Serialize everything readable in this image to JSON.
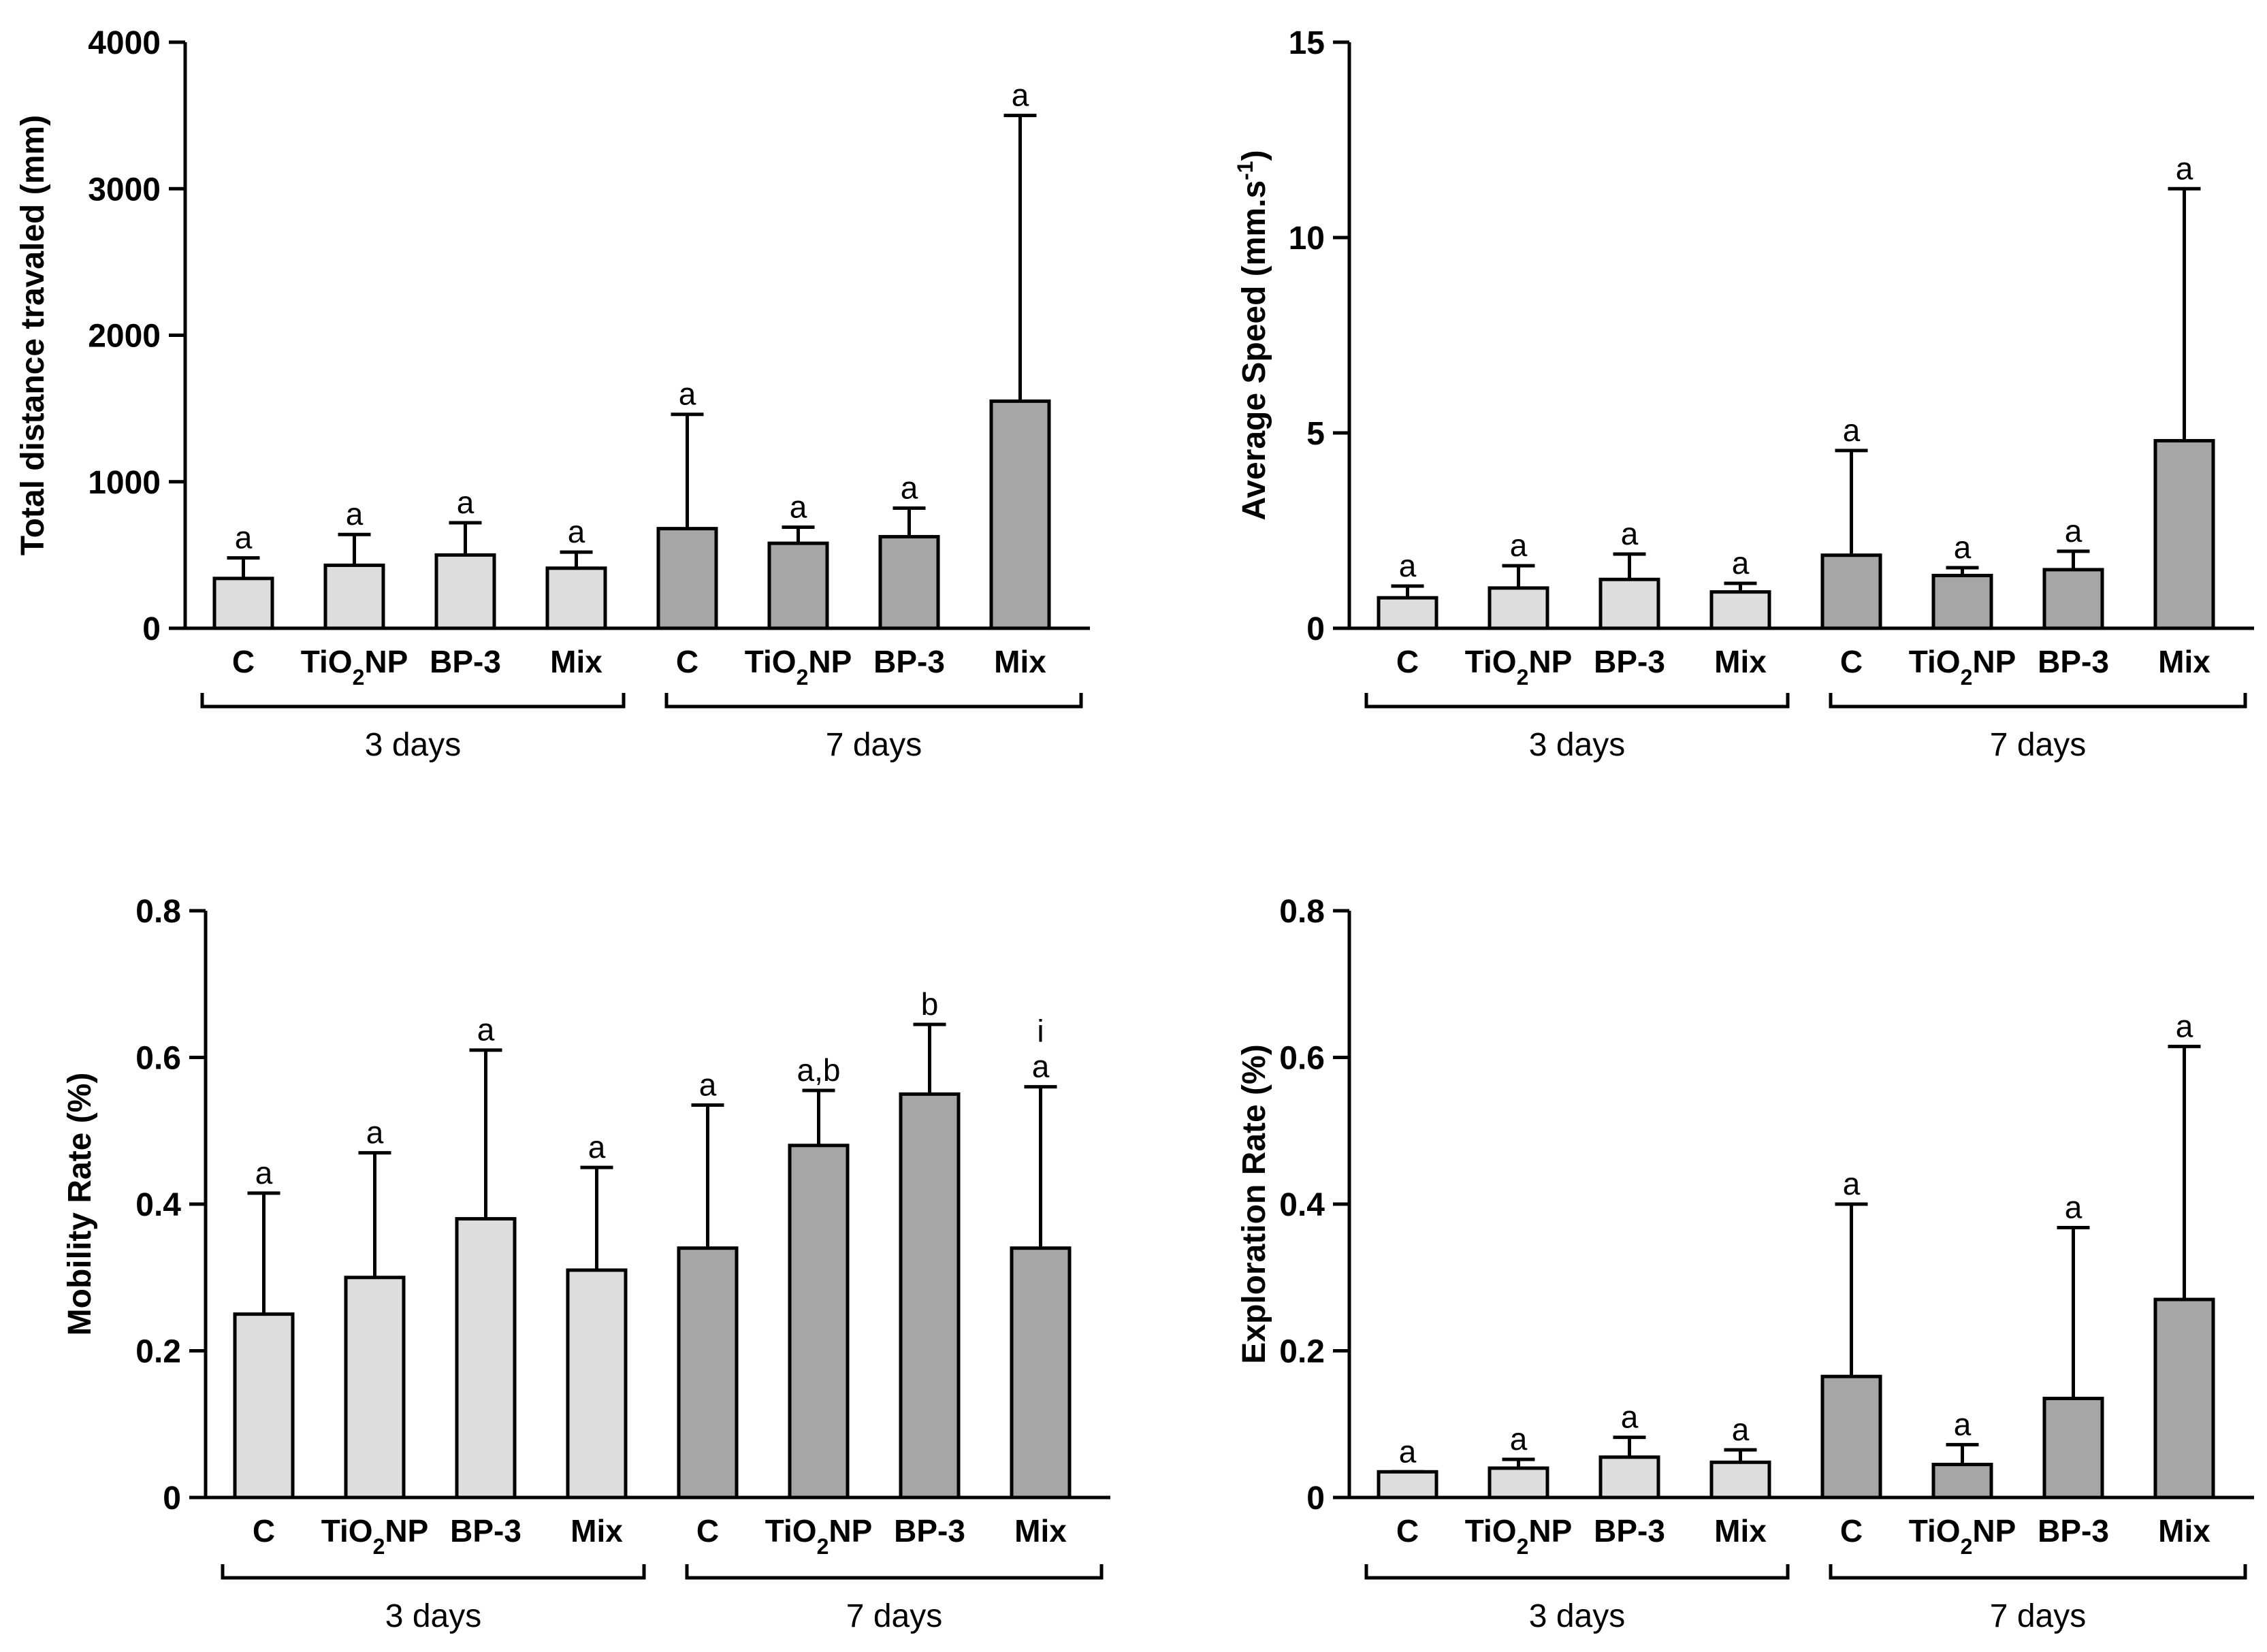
{
  "colors": {
    "day3": "#dddddd",
    "day7": "#a6a6a6",
    "axis": "#000000"
  },
  "group_labels": [
    "3 days",
    "7 days"
  ],
  "chart_data": [
    {
      "type": "bar",
      "ylabel": "Total distance travaled (mm)",
      "ylim": [
        0,
        4000
      ],
      "yticks": [
        0,
        1000,
        2000,
        3000,
        4000
      ],
      "categories": [
        "C",
        "TiO2NP",
        "BP-3",
        "Mix",
        "C",
        "TiO2NP",
        "BP-3",
        "Mix"
      ],
      "groups": [
        0,
        0,
        0,
        0,
        1,
        1,
        1,
        1
      ],
      "values": [
        340,
        430,
        500,
        410,
        680,
        580,
        625,
        1550
      ],
      "errors": [
        480,
        640,
        720,
        520,
        1460,
        690,
        820,
        3500
      ],
      "significance": [
        "a",
        "a",
        "a",
        "a",
        "a",
        "a",
        "a",
        "a"
      ]
    },
    {
      "type": "bar",
      "ylabel": "Average Speed (mm.s-1)",
      "ylim": [
        0,
        15
      ],
      "yticks": [
        0,
        5,
        10,
        15
      ],
      "categories": [
        "C",
        "TiO2NP",
        "BP-3",
        "Mix",
        "C",
        "TiO2NP",
        "BP-3",
        "Mix"
      ],
      "groups": [
        0,
        0,
        0,
        0,
        1,
        1,
        1,
        1
      ],
      "values": [
        0.78,
        1.03,
        1.25,
        0.93,
        1.87,
        1.35,
        1.5,
        4.8
      ],
      "errors": [
        1.08,
        1.6,
        1.9,
        1.15,
        4.55,
        1.55,
        1.97,
        11.25
      ],
      "significance": [
        "a",
        "a",
        "a",
        "a",
        "a",
        "a",
        "a",
        "a"
      ]
    },
    {
      "type": "bar",
      "ylabel": "Mobility Rate (%)",
      "ylim": [
        0,
        0.8
      ],
      "yticks": [
        0,
        0.2,
        0.4,
        0.6,
        0.8
      ],
      "categories": [
        "C",
        "TiO2NP",
        "BP-3",
        "Mix",
        "C",
        "TiO2NP",
        "BP-3",
        "Mix"
      ],
      "groups": [
        0,
        0,
        0,
        0,
        1,
        1,
        1,
        1
      ],
      "values": [
        0.25,
        0.3,
        0.38,
        0.31,
        0.34,
        0.48,
        0.55,
        0.34
      ],
      "errors": [
        0.415,
        0.47,
        0.61,
        0.45,
        0.535,
        0.555,
        0.645,
        0.56
      ],
      "significance": [
        "a",
        "a",
        "a",
        "a",
        "a",
        "a,b",
        "b",
        "a"
      ],
      "extra_labels": [
        {
          "index": 7,
          "text": "i"
        }
      ]
    },
    {
      "type": "bar",
      "ylabel": "Exploration Rate (%)",
      "ylim": [
        0,
        0.8
      ],
      "yticks": [
        0,
        0.2,
        0.4,
        0.6,
        0.8
      ],
      "categories": [
        "C",
        "TiO2NP",
        "BP-3",
        "Mix",
        "C",
        "TiO2NP",
        "BP-3",
        "Mix"
      ],
      "groups": [
        0,
        0,
        0,
        0,
        1,
        1,
        1,
        1
      ],
      "values": [
        0.035,
        0.04,
        0.055,
        0.048,
        0.165,
        0.045,
        0.135,
        0.27
      ],
      "errors": [
        0.035,
        0.052,
        0.082,
        0.065,
        0.4,
        0.072,
        0.368,
        0.615
      ],
      "significance": [
        "a",
        "a",
        "a",
        "a",
        "a",
        "a",
        "a",
        "a"
      ]
    }
  ]
}
